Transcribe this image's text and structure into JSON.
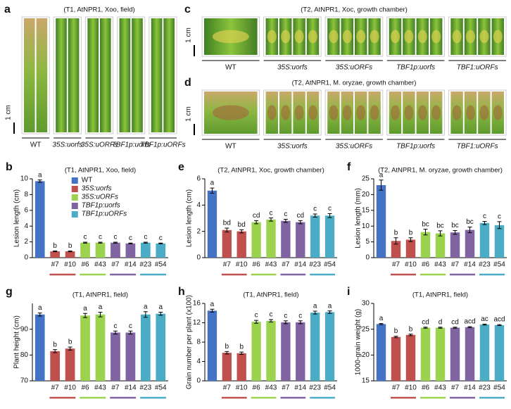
{
  "photo_panels": [
    {
      "label": "a",
      "title": "(T1, AtNPR1, Xoo, field)",
      "scale": "1 cm",
      "captions": [
        "WT",
        "35S:uorfs",
        "35S:uORFs",
        "TBF1p:uorfs",
        "TBF1p:uORFs"
      ]
    },
    {
      "label": "c",
      "title": "(T2, AtNPR1, Xoc, growth chamber)",
      "scale": "1 cm",
      "captions": [
        "WT",
        "35S:uorfs",
        "35S:uORFs",
        "TBF1p:uorfs",
        "TBF1:uORFs"
      ]
    },
    {
      "label": "d",
      "title": "(T2, AtNPR1, M. oryzae, growth chamber)",
      "scale": "1 cm",
      "captions": [
        "WT",
        "35S:uorfs",
        "35S:uORFs",
        "TBF1p:uorfs",
        "TBF1:uORFs"
      ]
    }
  ],
  "chart_data": [
    {
      "type": "bar",
      "label": "b",
      "title": "(T1, AtNPR1, Xoo, field)",
      "y_label": "Lesion length (cm)",
      "categories": [
        null,
        "#7",
        "#10",
        "#6",
        "#43",
        "#7",
        "#14",
        "#23",
        "#54"
      ],
      "values": [
        9.7,
        0.8,
        0.8,
        1.9,
        1.9,
        1.9,
        1.8,
        1.9,
        1.8
      ],
      "errors": [
        0.15,
        0.05,
        0.05,
        0.06,
        0.06,
        0.06,
        0.05,
        0.06,
        0.05
      ],
      "significance_letters": [
        "a",
        "b",
        "b",
        "c",
        "c",
        "c",
        "c",
        "c",
        "c"
      ],
      "colors": [
        "#4472c4",
        "#c0504d",
        "#c0504d",
        "#9bd34f",
        "#9bd34f",
        "#8064a2",
        "#8064a2",
        "#4bacc6",
        "#4bacc6"
      ],
      "ylim": [
        0,
        10
      ],
      "yticks": [
        0,
        2,
        4,
        6,
        8,
        10
      ],
      "legend": [
        {
          "name": "WT",
          "color": "#4472c4"
        },
        {
          "name": "35S:uorfs",
          "color": "#c0504d"
        },
        {
          "name": "35S:uORFs",
          "color": "#9bd34f"
        },
        {
          "name": "TBF1p:uorfs",
          "color": "#8064a2"
        },
        {
          "name": "TBF1p:uORFs",
          "color": "#4bacc6"
        }
      ]
    },
    {
      "type": "bar",
      "label": "e",
      "title": "(T2, AtNPR1, Xoc, growth chamber)",
      "y_label": "Lesion length (cm)",
      "categories": [
        null,
        "#7",
        "#10",
        "#6",
        "#43",
        "#7",
        "#14",
        "#23",
        "#54"
      ],
      "values": [
        5.1,
        2.1,
        2.0,
        2.7,
        2.9,
        2.8,
        2.7,
        3.2,
        3.2
      ],
      "errors": [
        0.2,
        0.15,
        0.12,
        0.12,
        0.12,
        0.12,
        0.12,
        0.12,
        0.15
      ],
      "significance_letters": [
        "a",
        "bd",
        "bd",
        "cd",
        "c",
        "c",
        "cd",
        "c",
        "c"
      ],
      "colors": [
        "#4472c4",
        "#c0504d",
        "#c0504d",
        "#9bd34f",
        "#9bd34f",
        "#8064a2",
        "#8064a2",
        "#4bacc6",
        "#4bacc6"
      ],
      "ylim": [
        0,
        6
      ],
      "yticks": [
        0,
        2,
        4,
        6
      ]
    },
    {
      "type": "bar",
      "label": "f",
      "title": "(T2, AtNPR1, M. oryzae, growth chamber)",
      "y_label": "Lesion length (mm)",
      "categories": [
        null,
        "#7",
        "#10",
        "#6",
        "#43",
        "#7",
        "#14",
        "#23",
        "#54"
      ],
      "values": [
        23,
        5.3,
        5.7,
        8.1,
        7.7,
        8,
        8.8,
        11,
        10.3
      ],
      "errors": [
        1.6,
        1,
        0.6,
        0.9,
        0.8,
        0.6,
        0.9,
        0.5,
        1.1
      ],
      "significance_letters": [
        "a",
        "b",
        "b",
        "bc",
        "bc",
        "bc",
        "bc",
        "c",
        "c"
      ],
      "colors": [
        "#4472c4",
        "#c0504d",
        "#c0504d",
        "#9bd34f",
        "#9bd34f",
        "#8064a2",
        "#8064a2",
        "#4bacc6",
        "#4bacc6"
      ],
      "ylim": [
        0,
        25
      ],
      "yticks": [
        0,
        5,
        10,
        15,
        20,
        25
      ]
    },
    {
      "type": "bar",
      "label": "g",
      "title": "(T1, AtNPR1, field)",
      "y_label": "Plant height (cm)",
      "categories": [
        null,
        "#7",
        "#10",
        "#6",
        "#43",
        "#7",
        "#14",
        "#23",
        "#54"
      ],
      "values": [
        95.7,
        81.5,
        82.5,
        95.3,
        95.7,
        88.7,
        88.7,
        95.7,
        96
      ],
      "errors": [
        0.6,
        0.6,
        0.6,
        0.8,
        0.9,
        0.6,
        0.6,
        1.1,
        0.6
      ],
      "significance_letters": [
        "a",
        "b",
        "b",
        "a",
        "a",
        "c",
        "c",
        "a",
        "a"
      ],
      "colors": [
        "#4472c4",
        "#c0504d",
        "#c0504d",
        "#9bd34f",
        "#9bd34f",
        "#8064a2",
        "#8064a2",
        "#4bacc6",
        "#4bacc6"
      ],
      "ylim": [
        70,
        100
      ],
      "yticks": [
        70,
        80,
        90
      ]
    },
    {
      "type": "bar",
      "label": "h",
      "title": "(T1, AtNPR1, field)",
      "y_label": "Grain number per plant (x100)",
      "categories": [
        null,
        "#7",
        "#10",
        "#6",
        "#43",
        "#7",
        "#14",
        "#23",
        "#54"
      ],
      "values": [
        14.5,
        5.8,
        5.7,
        12.2,
        12.4,
        12.1,
        12.1,
        14.1,
        14.2
      ],
      "errors": [
        0.3,
        0.25,
        0.25,
        0.3,
        0.25,
        0.3,
        0.3,
        0.3,
        0.25
      ],
      "significance_letters": [
        "a",
        "b",
        "b",
        "c",
        "c",
        "c",
        "c",
        "a",
        "a"
      ],
      "colors": [
        "#4472c4",
        "#c0504d",
        "#c0504d",
        "#9bd34f",
        "#9bd34f",
        "#8064a2",
        "#8064a2",
        "#4bacc6",
        "#4bacc6"
      ],
      "ylim": [
        0,
        16
      ],
      "yticks": [
        0,
        4,
        8,
        12,
        16
      ]
    },
    {
      "type": "bar",
      "label": "i",
      "title": "(T1, AtNPR1, field)",
      "y_label": "1000-grain weight (g)",
      "categories": [
        null,
        "#7",
        "#10",
        "#6",
        "#43",
        "#7",
        "#14",
        "#23",
        "#54"
      ],
      "values": [
        26,
        23.5,
        23.9,
        25.3,
        25.3,
        25.3,
        25.4,
        25.9,
        25.8
      ],
      "errors": [
        0.1,
        0.15,
        0.15,
        0.1,
        0.1,
        0.1,
        0.1,
        0.1,
        0.1
      ],
      "significance_letters": [
        "a",
        "b",
        "b",
        "cd",
        "d",
        "cd",
        "acd",
        "ac",
        "acd"
      ],
      "colors": [
        "#4472c4",
        "#c0504d",
        "#c0504d",
        "#9bd34f",
        "#9bd34f",
        "#8064a2",
        "#8064a2",
        "#4bacc6",
        "#4bacc6"
      ],
      "ylim": [
        15,
        30
      ],
      "yticks": [
        15,
        20,
        25,
        30
      ]
    }
  ]
}
